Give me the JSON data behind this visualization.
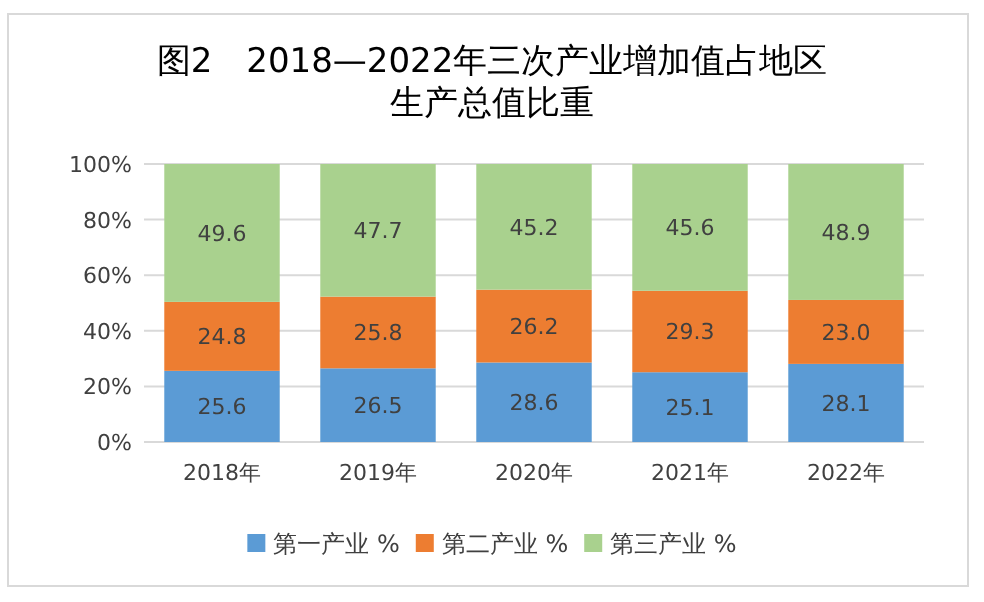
{
  "chart_data": {
    "type": "bar",
    "stacked": true,
    "title": "图2　2018—2022年三次产业增加值占地区生产总值比重",
    "categories": [
      "2018年",
      "2019年",
      "2020年",
      "2021年",
      "2022年"
    ],
    "series": [
      {
        "name": "第一产业 %",
        "color": "#5b9bd5",
        "values": [
          25.6,
          26.5,
          28.6,
          25.1,
          28.1
        ],
        "value_labels": [
          "25.6",
          "26.5",
          "28.6",
          "25.1",
          "28.1"
        ]
      },
      {
        "name": "第二产业 %",
        "color": "#ed7d31",
        "values": [
          24.8,
          25.8,
          26.2,
          29.3,
          23.0
        ],
        "value_labels": [
          "24.8",
          "25.8",
          "26.2",
          "29.3",
          "23.0"
        ]
      },
      {
        "name": "第三产业 %",
        "color": "#a9d18e",
        "values": [
          49.6,
          47.7,
          45.2,
          45.6,
          48.9
        ],
        "value_labels": [
          "49.6",
          "47.7",
          "45.2",
          "45.6",
          "48.9"
        ]
      }
    ],
    "ylim": [
      0,
      100
    ],
    "yticks": [
      {
        "value": 0,
        "label": "0%"
      },
      {
        "value": 20,
        "label": "20%"
      },
      {
        "value": 40,
        "label": "40%"
      },
      {
        "value": 60,
        "label": "60%"
      },
      {
        "value": 80,
        "label": "80%"
      },
      {
        "value": 100,
        "label": "100%"
      }
    ],
    "grid": "y",
    "legend": "bottom"
  }
}
